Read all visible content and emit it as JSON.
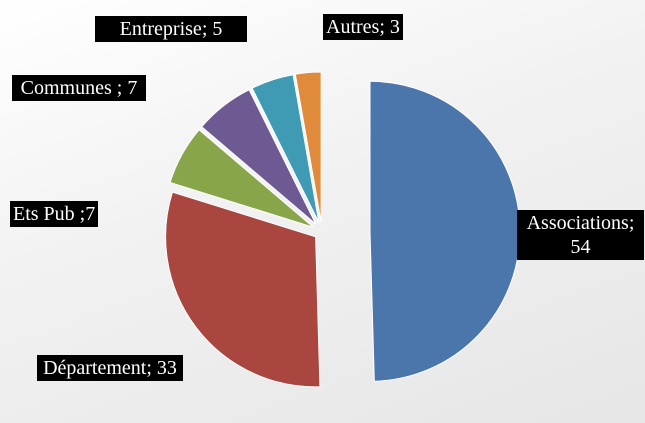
{
  "chart_data": {
    "type": "pie",
    "categories": [
      "Associations",
      "Département",
      "Ets Pub",
      "Communes",
      "Entreprise",
      "Autres"
    ],
    "values": [
      54,
      33,
      7,
      7,
      5,
      3
    ],
    "value_labels": [
      "Associations; 54",
      "Département; 33",
      "Ets Pub ;7",
      "Communes ; 7",
      "Entreprise; 5",
      "Autres; 3"
    ],
    "colors": [
      "#4a76ab",
      "#a9463f",
      "#88a54a",
      "#6d5a93",
      "#3f9bb3",
      "#e08a3b"
    ]
  }
}
